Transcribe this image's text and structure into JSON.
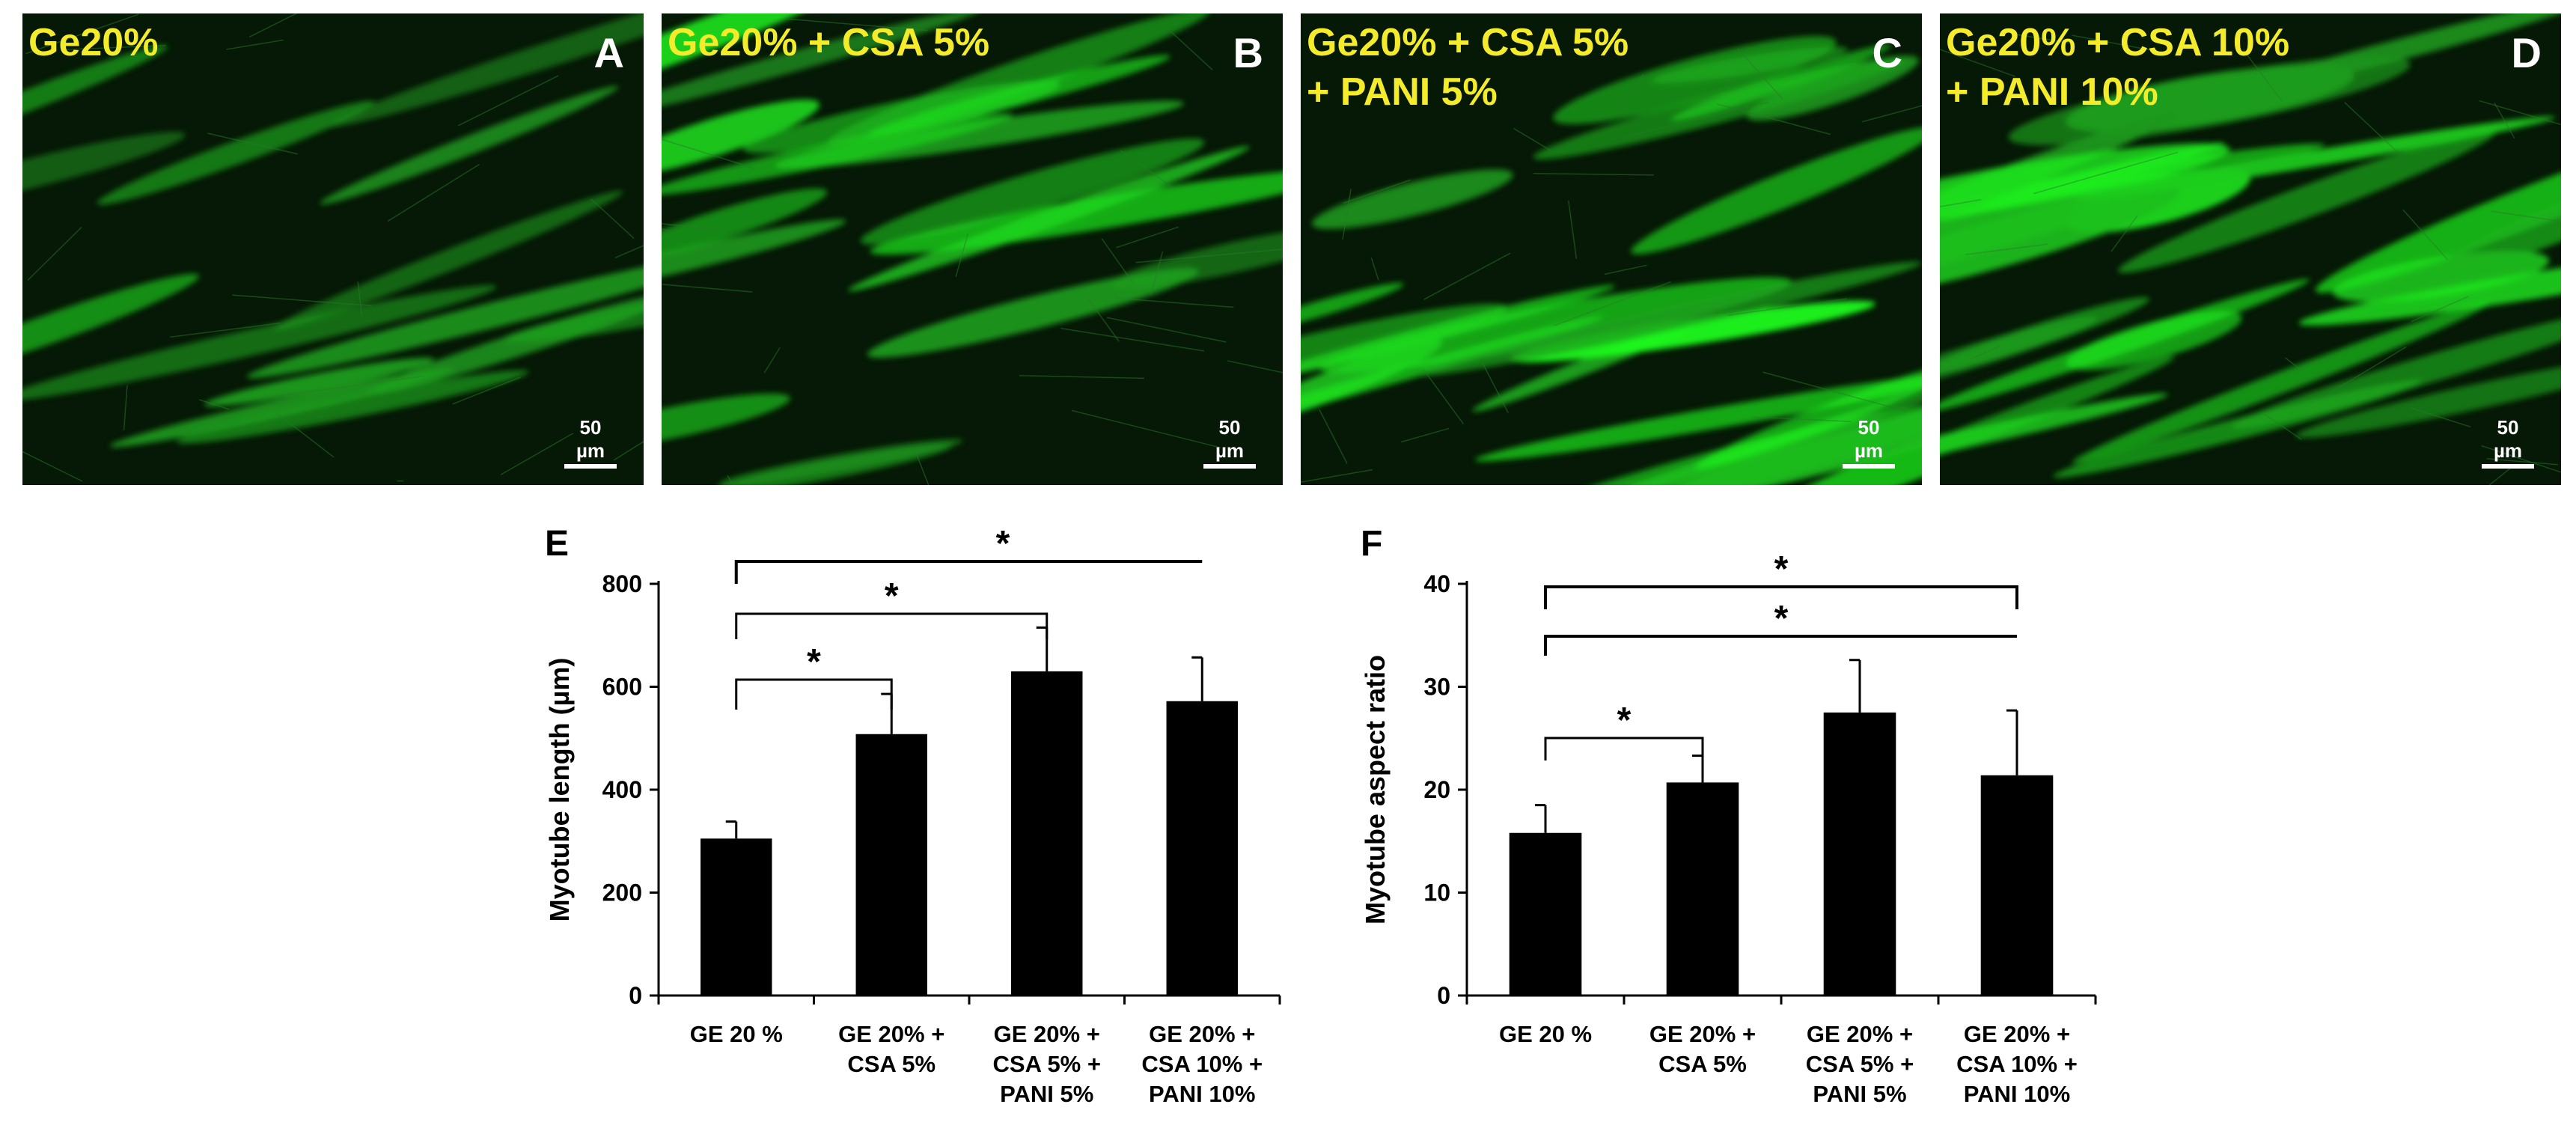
{
  "panels": [
    {
      "letter": "A",
      "condition": "Ge20%",
      "scale_bar": "50 µm"
    },
    {
      "letter": "B",
      "condition": "Ge20% + CSA 5%",
      "scale_bar": "50 µm"
    },
    {
      "letter": "C",
      "condition": "Ge20% + CSA 5%\n+ PANI 5%",
      "scale_bar": "50 µm"
    },
    {
      "letter": "D",
      "condition": "Ge20% + CSA 10%\n+ PANI 10%",
      "scale_bar": "50 µm"
    }
  ],
  "colors": {
    "condition_label": "#f4ec2a",
    "fluorescence": "#3cff3c",
    "bar": "#000000"
  },
  "chart_data": [
    {
      "panel": "E",
      "type": "bar",
      "categories": [
        [
          "GE 20 %"
        ],
        [
          "GE 20% +",
          "CSA 5%"
        ],
        [
          "GE 20% +",
          "CSA 5% +",
          "PANI 5%"
        ],
        [
          "GE 20%  +",
          "CSA 10% +",
          "PANI 10%"
        ]
      ],
      "values": [
        305,
        508,
        630,
        572
      ],
      "errors": [
        33,
        78,
        85,
        85
      ],
      "ylabel": "Myotube length (µm)",
      "ylim": [
        0,
        800
      ],
      "yticks": [
        0,
        200,
        400,
        600,
        800
      ],
      "significance": [
        {
          "from": 0,
          "to": 3,
          "label": "*"
        },
        {
          "from": 0,
          "to": 2,
          "label": "*"
        },
        {
          "from": 0,
          "to": 1,
          "label": "*"
        }
      ]
    },
    {
      "panel": "F",
      "type": "bar",
      "categories": [
        [
          "GE 20 %"
        ],
        [
          "GE 20% +",
          "CSA 5%"
        ],
        [
          "GE 20% +",
          "CSA 5% +",
          "PANI 5%"
        ],
        [
          "GE 20%  +",
          "CSA 10% +",
          "PANI 10%"
        ]
      ],
      "values": [
        15.8,
        20.7,
        27.5,
        21.4
      ],
      "errors": [
        2.7,
        2.6,
        5.1,
        6.3
      ],
      "ylabel": "Myotube aspect ratio",
      "ylim": [
        0,
        40
      ],
      "yticks": [
        0,
        10,
        20,
        30,
        40
      ],
      "significance": [
        {
          "from": 0,
          "to": 3,
          "label": "*"
        },
        {
          "from": 0,
          "to": 3,
          "label": "*"
        },
        {
          "from": 0,
          "to": 1,
          "label": "*"
        }
      ]
    }
  ]
}
